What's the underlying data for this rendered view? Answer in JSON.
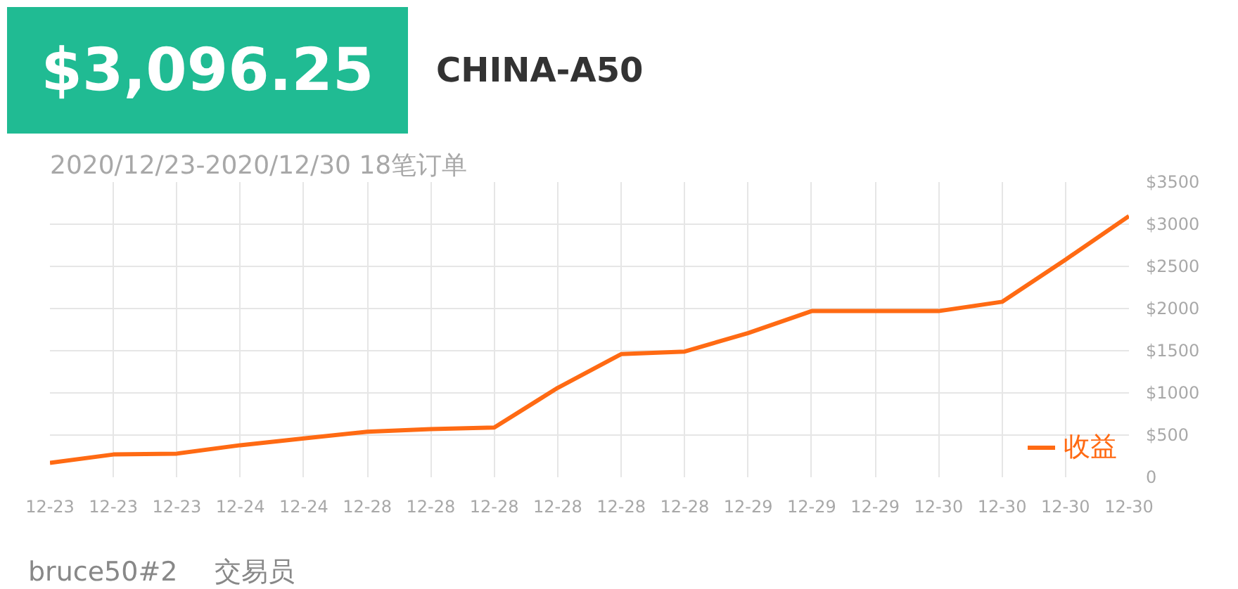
{
  "chart_data": {
    "type": "line",
    "title": "$3,096.25",
    "subtitle": "CHINA-A50",
    "annotations": [
      "2020/12/23-2020/12/30 18笔订单",
      "bruce50#2",
      "交易员"
    ],
    "categories": [
      "12-23",
      "12-23",
      "12-23",
      "12-24",
      "12-24",
      "12-28",
      "12-28",
      "12-28",
      "12-28",
      "12-28",
      "12-28",
      "12-29",
      "12-29",
      "12-29",
      "12-30",
      "12-30",
      "12-30",
      "12-30"
    ],
    "series": [
      {
        "name": "收益",
        "color": "#ff6a13",
        "values": [
          170,
          270,
          280,
          380,
          460,
          540,
          570,
          590,
          1060,
          1460,
          1490,
          1710,
          1970,
          1970,
          1970,
          2080,
          2580,
          3096.25
        ]
      }
    ],
    "ylim": [
      0,
      3500
    ],
    "yticks": [
      0,
      {
        "value": 500,
        "label": "$500"
      },
      {
        "value": 1000,
        "label": "$1000"
      },
      {
        "value": 1500,
        "label": "$1500"
      },
      {
        "value": 2000,
        "label": "$2000"
      },
      {
        "value": 2500,
        "label": "$2500"
      },
      {
        "value": 3000,
        "label": "$3000"
      },
      {
        "value": 3500,
        "label": "$3500"
      }
    ],
    "grid": true,
    "legend": "bottom right",
    "marker": "none",
    "line_style": "solid"
  }
}
